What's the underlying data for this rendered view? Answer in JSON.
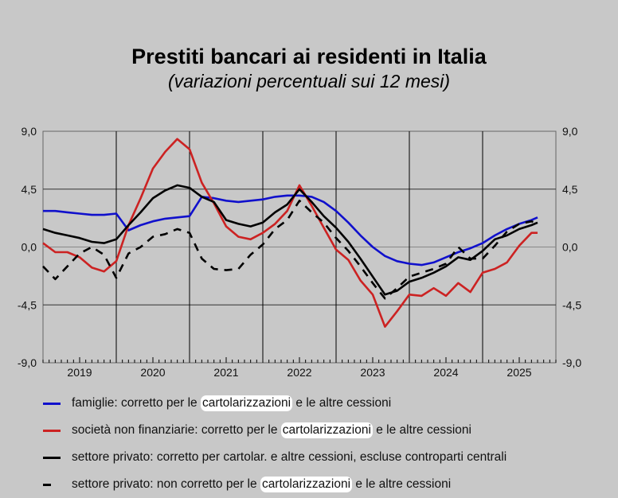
{
  "chart_data": {
    "type": "line",
    "title": "Prestiti bancari ai residenti in Italia",
    "subtitle": "(variazioni percentuali sui 12 mesi)",
    "xlabel": "",
    "ylabel": "",
    "ylim": [
      -9,
      9
    ],
    "y_ticks": [
      "9,0",
      "4,5",
      "0,0",
      "-4,5",
      "-9,0"
    ],
    "y_tick_values": [
      9,
      4.5,
      0,
      -4.5,
      -9
    ],
    "x_tick_labels": [
      "2019",
      "2020",
      "2021",
      "2022",
      "2023",
      "2024",
      "2025"
    ],
    "xlim": [
      2019,
      2026
    ],
    "grid": true,
    "legend_position": "bottom",
    "x": [
      2019.0,
      2019.167,
      2019.333,
      2019.5,
      2019.667,
      2019.833,
      2020.0,
      2020.167,
      2020.333,
      2020.5,
      2020.667,
      2020.833,
      2021.0,
      2021.167,
      2021.333,
      2021.5,
      2021.667,
      2021.833,
      2022.0,
      2022.167,
      2022.333,
      2022.5,
      2022.667,
      2022.833,
      2023.0,
      2023.167,
      2023.333,
      2023.5,
      2023.667,
      2023.833,
      2024.0,
      2024.167,
      2024.333,
      2024.5,
      2024.667,
      2024.833,
      2025.0,
      2025.167,
      2025.333,
      2025.5,
      2025.667,
      2025.75
    ],
    "series": [
      {
        "name": "famiglie: corretto per le cartolarizzazioni e le altre cessioni",
        "pre": "famiglie: corretto per le ",
        "hl": "cartolarizzazioni",
        "post": " e le altre cessioni",
        "color": "#1010cc",
        "dash": false,
        "values": [
          2.8,
          2.8,
          2.7,
          2.6,
          2.5,
          2.5,
          2.6,
          1.3,
          1.7,
          2.0,
          2.2,
          2.3,
          2.4,
          3.9,
          3.8,
          3.6,
          3.5,
          3.6,
          3.7,
          3.9,
          4.0,
          4.0,
          3.9,
          3.5,
          2.8,
          1.9,
          0.9,
          0.0,
          -0.7,
          -1.1,
          -1.3,
          -1.4,
          -1.2,
          -0.8,
          -0.4,
          -0.1,
          0.3,
          0.9,
          1.4,
          1.8,
          2.1,
          2.3
        ]
      },
      {
        "name": "società non finanziarie: corretto per le cartolarizzazioni e le altre cessioni",
        "pre": "società non finanziarie: corretto per le ",
        "hl": "cartolarizzazioni",
        "post": " e le altre cessioni",
        "color": "#cc2222",
        "dash": false,
        "values": [
          0.3,
          -0.4,
          -0.4,
          -0.8,
          -1.6,
          -1.9,
          -1.1,
          1.7,
          3.8,
          6.1,
          7.4,
          8.4,
          7.6,
          5.0,
          3.4,
          1.6,
          0.8,
          0.6,
          1.1,
          1.8,
          2.8,
          4.8,
          3.2,
          1.5,
          -0.2,
          -1.0,
          -2.6,
          -3.7,
          -6.2,
          -5.0,
          -3.7,
          -3.8,
          -3.2,
          -3.8,
          -2.8,
          -3.5,
          -2.0,
          -1.7,
          -1.2,
          0.1,
          1.1,
          1.1
        ]
      },
      {
        "name": "settore privato: corretto per cartolar. e altre cessioni, escluse controparti centrali",
        "pre": "settore privato: corretto per cartolar. e altre cessioni, escluse controparti centrali",
        "hl": "",
        "post": "",
        "color": "#000000",
        "dash": false,
        "values": [
          1.4,
          1.1,
          0.9,
          0.7,
          0.4,
          0.3,
          0.6,
          1.7,
          2.7,
          3.8,
          4.4,
          4.8,
          4.6,
          3.9,
          3.5,
          2.1,
          1.8,
          1.6,
          1.9,
          2.7,
          3.3,
          4.5,
          3.5,
          2.4,
          1.5,
          0.4,
          -0.9,
          -2.3,
          -3.7,
          -3.4,
          -2.7,
          -2.4,
          -2.0,
          -1.5,
          -0.8,
          -1.0,
          -0.3,
          0.6,
          0.9,
          1.4,
          1.7,
          1.9
        ]
      },
      {
        "name": "settore privato: non corretto per le cartolarizzazioni e le altre cessioni",
        "pre": "settore privato: non corretto per le ",
        "hl": "cartolarizzazioni",
        "post": " e le altre cessioni",
        "color": "#000000",
        "dash": true,
        "values": [
          -1.5,
          -2.5,
          -1.5,
          -0.5,
          0.0,
          -0.6,
          -2.4,
          -0.5,
          0.0,
          0.8,
          1.0,
          1.4,
          1.1,
          -0.9,
          -1.7,
          -1.8,
          -1.7,
          -0.6,
          0.2,
          1.4,
          2.1,
          3.6,
          2.7,
          1.9,
          0.7,
          -0.3,
          -1.5,
          -2.8,
          -4.0,
          -3.2,
          -2.3,
          -2.0,
          -1.7,
          -1.3,
          0.0,
          -0.9,
          -0.9,
          0.1,
          1.2,
          1.8,
          2.0,
          1.8
        ]
      }
    ]
  }
}
